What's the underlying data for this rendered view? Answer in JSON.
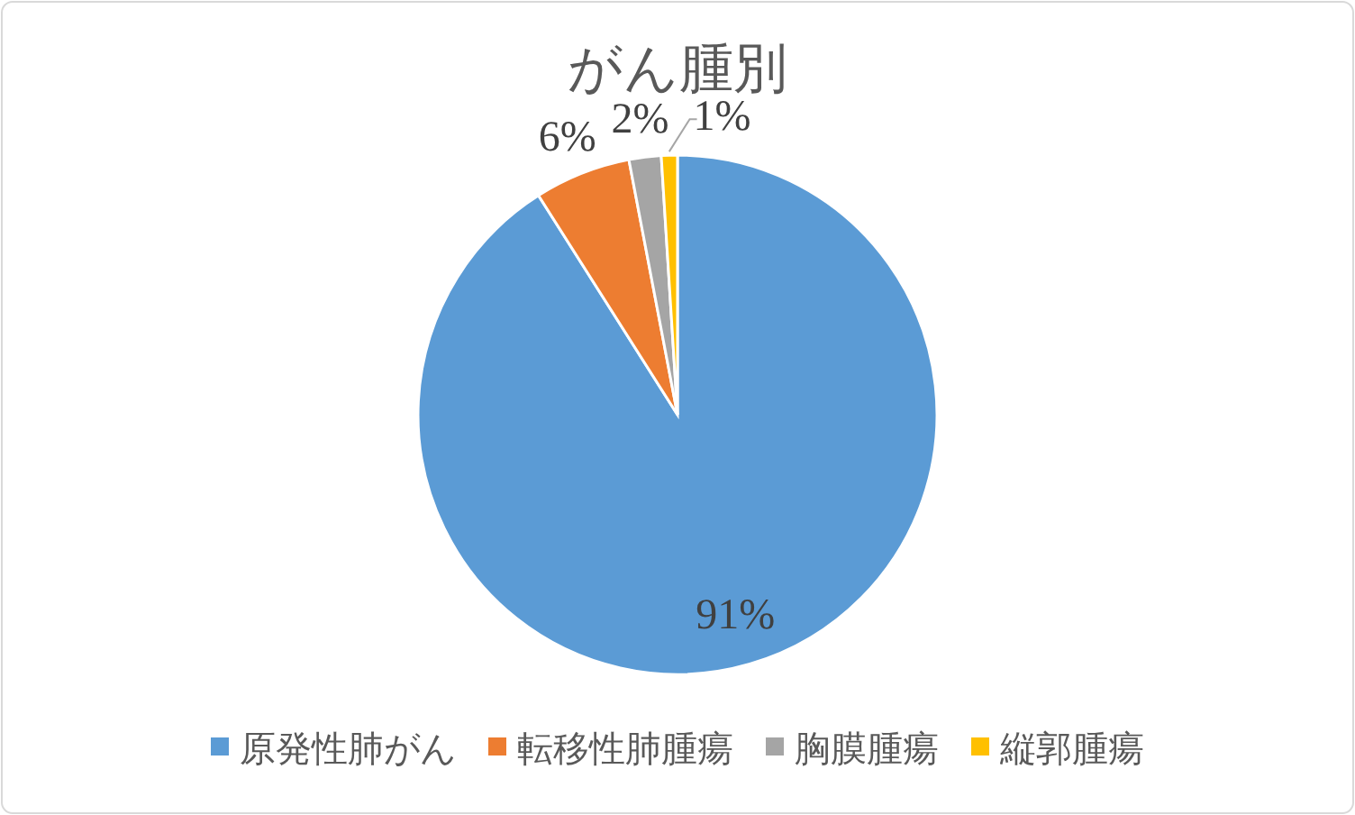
{
  "chart_data": {
    "type": "pie",
    "title": "がん腫別",
    "categories": [
      "原発性肺がん",
      "転移性肺腫瘍",
      "胸膜腫瘍",
      "縦郭腫瘍"
    ],
    "values": [
      91,
      6,
      2,
      1
    ],
    "colors": [
      "#5b9bd5",
      "#ed7d31",
      "#a5a5a5",
      "#ffc000"
    ],
    "value_labels": [
      "91%",
      "6%",
      "2%",
      "1%"
    ],
    "legend": "bottom"
  }
}
